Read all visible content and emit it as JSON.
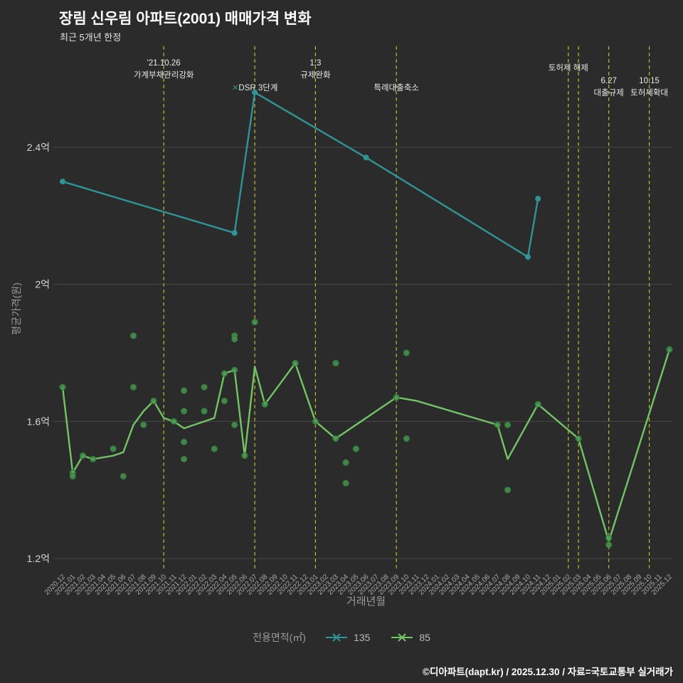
{
  "title": "장림 신우림 아파트(2001) 매매가격 변화",
  "subtitle": "최근 5개년 한정",
  "footer": "©디아파트(dapt.kr) / 2025.12.30 / 자료=국토교통부 실거래가",
  "colors": {
    "background": "#2b2b2b",
    "grid": "#474747",
    "event_line": "#bdbd2a",
    "teal": "#2f9496",
    "green": "#72c465",
    "green_dot": "#4a9e55",
    "green_dot_edge": "#2e6e35",
    "title_text": "#ffffff",
    "subtitle_text": "#e3e3e3",
    "axis_text": "#a8a8a8",
    "tick_text": "#d6d6d6",
    "annotation_text": "#e8e8e8",
    "annotation_marker": "#2f9c63"
  },
  "chart_data": {
    "type": "line",
    "title": "장림 신우림 아파트(2001) 매매가격 변화",
    "subtitle": "최근 5개년 한정",
    "xlabel": "거래년월",
    "ylabel": "평균가격(원)",
    "unit": "억",
    "ylim": [
      1.2,
      2.7
    ],
    "grid": true,
    "yticks": [
      {
        "value": 1.2,
        "label": "1.2억"
      },
      {
        "value": 1.6,
        "label": "1.6억"
      },
      {
        "value": 2.0,
        "label": "2억"
      },
      {
        "value": 2.4,
        "label": "2.4억"
      }
    ],
    "categories": [
      "2020.12",
      "2021.01",
      "2021.02",
      "2021.03",
      "2021.04",
      "2021.05",
      "2021.06",
      "2021.07",
      "2021.08",
      "2021.09",
      "2021.10",
      "2021.11",
      "2021.12",
      "2022.01",
      "2022.02",
      "2022.03",
      "2022.04",
      "2022.05",
      "2022.06",
      "2022.07",
      "2022.08",
      "2022.09",
      "2022.10",
      "2022.11",
      "2022.12",
      "2023.01",
      "2023.02",
      "2023.03",
      "2023.04",
      "2023.05",
      "2023.06",
      "2023.07",
      "2023.08",
      "2023.09",
      "2023.10",
      "2023.11",
      "2023.12",
      "2024.01",
      "2024.02",
      "2024.03",
      "2024.04",
      "2024.05",
      "2024.06",
      "2024.07",
      "2024.08",
      "2024.09",
      "2024.10",
      "2024.11",
      "2024.12",
      "2025.01",
      "2025.02",
      "2025.03",
      "2025.04",
      "2025.05",
      "2025.06",
      "2025.07",
      "2025.08",
      "2025.09",
      "2025.10",
      "2025.11",
      "2025.12"
    ],
    "legend": {
      "label": "전용면적(㎡)",
      "position": "bottom",
      "entries": [
        {
          "name": "135",
          "color": "#2f9496"
        },
        {
          "name": "85",
          "color": "#72c465"
        }
      ]
    },
    "series": [
      {
        "name": "135",
        "color": "#2f9496",
        "points": [
          [
            "2020.12",
            2.3
          ],
          [
            "2022.05",
            2.15
          ],
          [
            "2022.07",
            2.56
          ],
          [
            "2023.06",
            2.37
          ],
          [
            "2024.10",
            2.08
          ],
          [
            "2024.11",
            2.25
          ]
        ]
      },
      {
        "name": "85",
        "color": "#72c465",
        "points": [
          [
            "2020.12",
            1.7
          ],
          [
            "2021.01",
            1.45
          ],
          [
            "2021.02",
            1.5
          ],
          [
            "2021.03",
            1.49
          ],
          [
            "2021.05",
            1.5
          ],
          [
            "2021.06",
            1.51
          ],
          [
            "2021.07",
            1.59
          ],
          [
            "2021.08",
            1.63
          ],
          [
            "2021.09",
            1.66
          ],
          [
            "2021.10",
            1.61
          ],
          [
            "2021.11",
            1.6
          ],
          [
            "2021.12",
            1.58
          ],
          [
            "2022.01",
            1.59
          ],
          [
            "2022.02",
            1.6
          ],
          [
            "2022.03",
            1.61
          ],
          [
            "2022.04",
            1.74
          ],
          [
            "2022.05",
            1.75
          ],
          [
            "2022.06",
            1.5
          ],
          [
            "2022.07",
            1.76
          ],
          [
            "2022.08",
            1.65
          ],
          [
            "2022.11",
            1.77
          ],
          [
            "2023.01",
            1.6
          ],
          [
            "2023.03",
            1.55
          ],
          [
            "2023.06",
            1.61
          ],
          [
            "2023.09",
            1.67
          ],
          [
            "2023.11",
            1.66
          ],
          [
            "2024.07",
            1.59
          ],
          [
            "2024.08",
            1.49
          ],
          [
            "2024.11",
            1.65
          ],
          [
            "2025.03",
            1.55
          ],
          [
            "2025.06",
            1.25
          ],
          [
            "2025.12",
            1.81
          ]
        ],
        "scatter": [
          [
            "2020.12",
            1.7
          ],
          [
            "2021.01",
            1.45
          ],
          [
            "2021.01",
            1.44
          ],
          [
            "2021.02",
            1.5
          ],
          [
            "2021.03",
            1.49
          ],
          [
            "2021.05",
            1.52
          ],
          [
            "2021.06",
            1.44
          ],
          [
            "2021.07",
            1.85
          ],
          [
            "2021.07",
            1.7
          ],
          [
            "2021.08",
            1.59
          ],
          [
            "2021.09",
            1.66
          ],
          [
            "2021.11",
            1.6
          ],
          [
            "2021.12",
            1.69
          ],
          [
            "2021.12",
            1.63
          ],
          [
            "2021.12",
            1.54
          ],
          [
            "2021.12",
            1.49
          ],
          [
            "2022.02",
            1.7
          ],
          [
            "2022.02",
            1.63
          ],
          [
            "2022.03",
            1.52
          ],
          [
            "2022.04",
            1.74
          ],
          [
            "2022.04",
            1.66
          ],
          [
            "2022.05",
            1.85
          ],
          [
            "2022.05",
            1.84
          ],
          [
            "2022.05",
            1.75
          ],
          [
            "2022.05",
            1.59
          ],
          [
            "2022.06",
            1.5
          ],
          [
            "2022.07",
            1.89
          ],
          [
            "2022.08",
            1.65
          ],
          [
            "2022.11",
            1.77
          ],
          [
            "2023.01",
            1.6
          ],
          [
            "2023.03",
            1.77
          ],
          [
            "2023.03",
            1.55
          ],
          [
            "2023.04",
            1.48
          ],
          [
            "2023.04",
            1.42
          ],
          [
            "2023.05",
            1.52
          ],
          [
            "2023.09",
            1.67
          ],
          [
            "2023.10",
            1.8
          ],
          [
            "2023.10",
            1.55
          ],
          [
            "2024.07",
            1.59
          ],
          [
            "2024.08",
            1.59
          ],
          [
            "2024.08",
            1.4
          ],
          [
            "2024.11",
            1.65
          ],
          [
            "2025.03",
            1.55
          ],
          [
            "2025.06",
            1.26
          ],
          [
            "2025.06",
            1.24
          ],
          [
            "2025.12",
            1.81
          ]
        ]
      }
    ],
    "events": [
      {
        "x": "2021.10",
        "lines": [
          "'21.10.26",
          "가계부채관리강화"
        ],
        "baseline": 92
      },
      {
        "x": "2022.07",
        "lines": [
          "✕DSR 3단계"
        ],
        "baseline": 127
      },
      {
        "x": "2023.01",
        "lines": [
          "1.3",
          "규제완화"
        ],
        "baseline": 92
      },
      {
        "x": "2023.09",
        "lines": [
          "특례대출축소"
        ],
        "baseline": 127
      },
      {
        "x": "2025.02",
        "lines": [
          "토허제 해제"
        ],
        "baseline": 99
      },
      {
        "x": "2025.03",
        "lines": [],
        "baseline": 0
      },
      {
        "x": "2025.06",
        "lines": [
          "6.27",
          "대출규제"
        ],
        "baseline": 117
      },
      {
        "x": "2025.10",
        "lines": [
          "10.15",
          "토허제확대"
        ],
        "baseline": 117
      }
    ]
  }
}
